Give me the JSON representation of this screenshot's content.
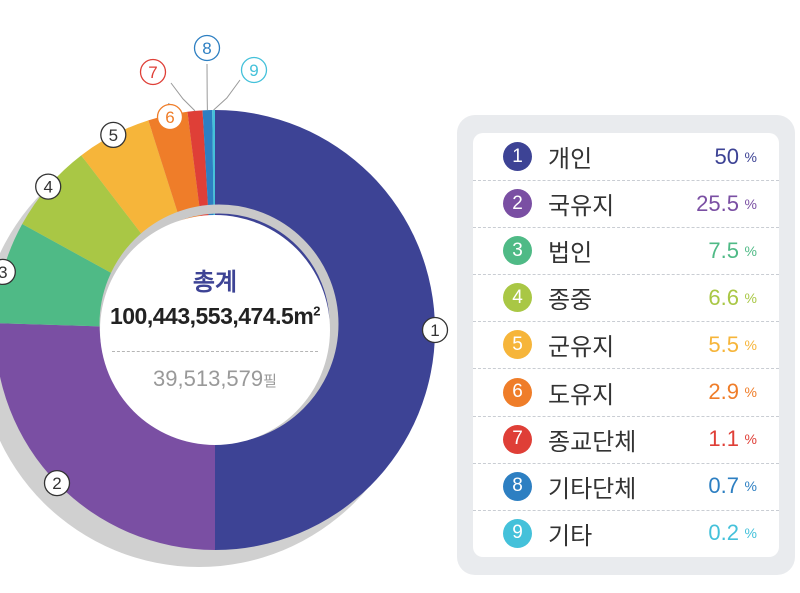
{
  "chart_data": {
    "type": "pie",
    "categories": [
      "개인",
      "국유지",
      "법인",
      "종중",
      "군유지",
      "도유지",
      "종교단체",
      "기타단체",
      "기타"
    ],
    "values": [
      50,
      25.5,
      7.5,
      6.6,
      5.5,
      2.9,
      1.1,
      0.7,
      0.2
    ],
    "unit": "%",
    "numbers": [
      "1",
      "2",
      "3",
      "4",
      "5",
      "6",
      "7",
      "8",
      "9"
    ],
    "colors": [
      "#3d4395",
      "#7a4fa3",
      "#4fba86",
      "#a9c745",
      "#f6b53a",
      "#ef7d29",
      "#df3f37",
      "#2d7fc2",
      "#44c1da"
    ],
    "legend_position": "right",
    "center": {
      "title": "총계",
      "total_area": "100,443,553,474.5",
      "area_unit": "m",
      "area_unit_superscript": "2",
      "parcel_count": "39,513,579",
      "parcel_unit": "필"
    }
  }
}
